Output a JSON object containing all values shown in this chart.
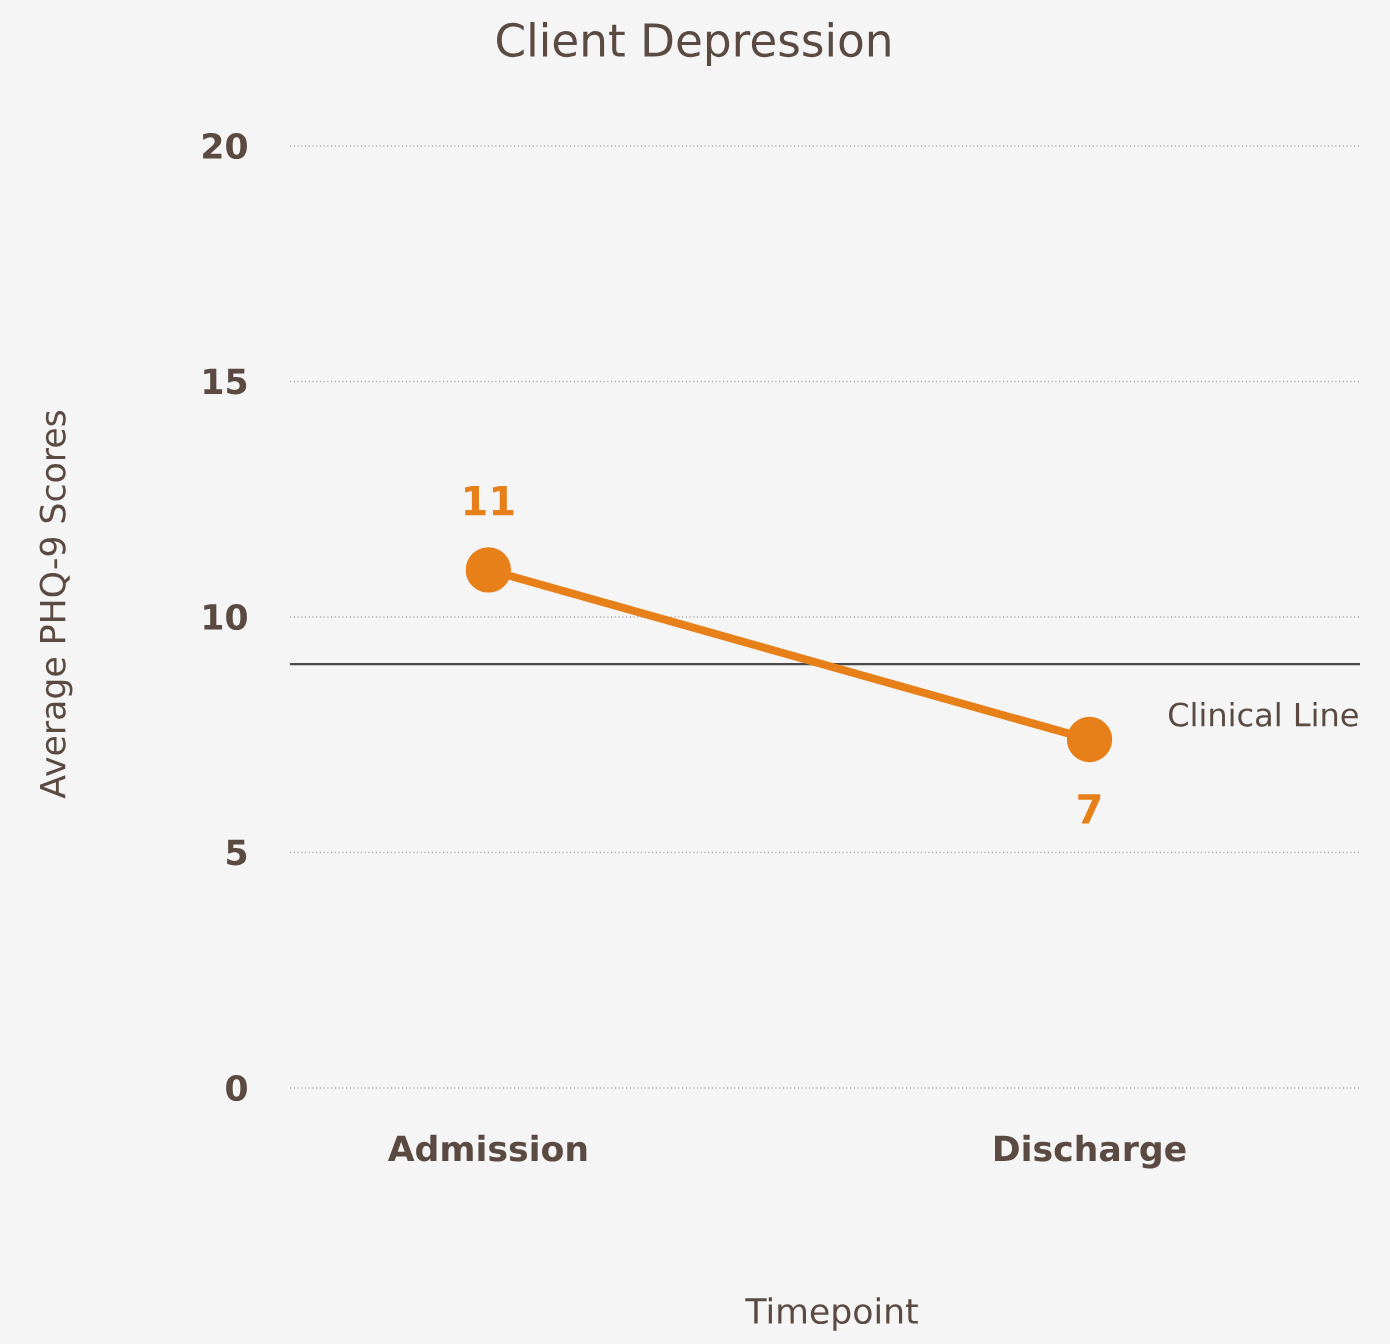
{
  "chart_data": {
    "type": "line",
    "title": "Client Depression",
    "xlabel": "Timepoint",
    "ylabel": "Average PHQ-9 Scores",
    "categories": [
      "Admission",
      "Discharge"
    ],
    "series": [
      {
        "color": "#e8801a",
        "values": [
          11,
          7.4
        ],
        "value_labels": [
          "11",
          "7"
        ]
      }
    ],
    "ylim": [
      0,
      20
    ],
    "yticks": [
      0,
      5,
      10,
      15,
      20
    ],
    "grid": "y",
    "marker": "circle",
    "line_style": "solid",
    "ref_lines": [
      {
        "axis": "y",
        "value": 9,
        "label": "Clinical Line",
        "color": "#4a4a4a"
      }
    ]
  }
}
